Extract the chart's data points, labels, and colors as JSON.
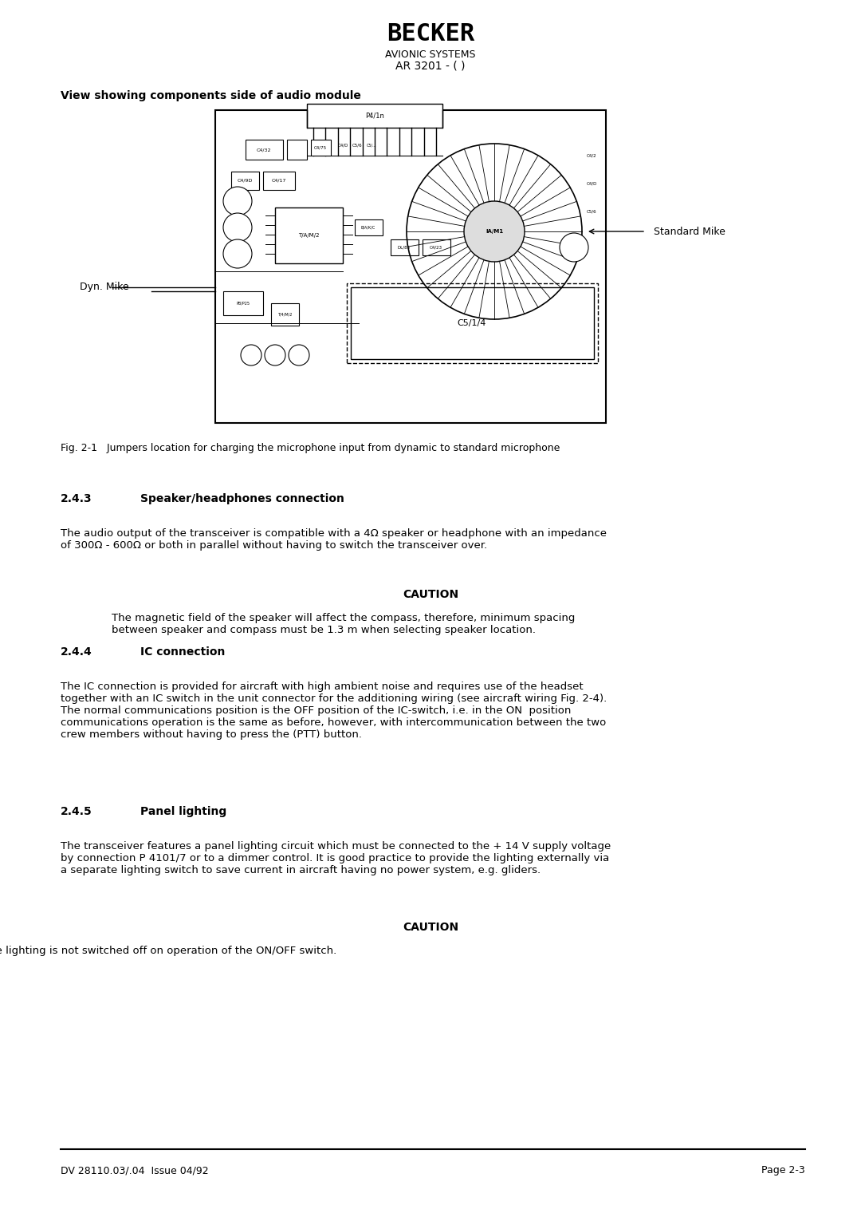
{
  "bg_color": "#ffffff",
  "page_width": 10.8,
  "page_height": 15.25,
  "header": {
    "becker_text": "BECKER",
    "avionic_text": "AVIONIC SYSTEMS",
    "model_text": "AR 3201 - ( )"
  },
  "section_title": "View showing components side of audio module",
  "fig_caption": "Fig. 2-1   Jumpers location for charging the microphone input from dynamic to standard microphone",
  "labels": {
    "dyn_mike": "Dyn. Mike",
    "std_mike": "Standard Mike"
  },
  "section_243": {
    "number": "2.4.3",
    "title": "Speaker/headphones connection",
    "body": "The audio output of the transceiver is compatible with a 4Ω speaker or headphone with an impedance\nof 300Ω - 600Ω or both in parallel without having to switch the transceiver over.",
    "caution_title": "CAUTION",
    "caution_body": "The magnetic field of the speaker will affect the compass, therefore, minimum spacing\nbetween speaker and compass must be 1.3 m when selecting speaker location."
  },
  "section_244": {
    "number": "2.4.4",
    "title": "IC connection",
    "body": "The IC connection is provided for aircraft with high ambient noise and requires use of the headset\ntogether with an IC switch in the unit connector for the additioning wiring (see aircraft wiring Fig. 2-4).\nThe normal communications position is the OFF position of the IC-switch, i.e. in the ON  position\ncommunications operation is the same as before, however, with intercommunication between the two\ncrew members without having to press the (PTT) button."
  },
  "section_245": {
    "number": "2.4.5",
    "title": "Panel lighting",
    "body": "The transceiver features a panel lighting circuit which must be connected to the + 14 V supply voltage\nby connection P 4101/7 or to a dimmer control. It is good practice to provide the lighting externally via\na separate lighting switch to save current in aircraft having no power system, e.g. gliders.",
    "caution_title": "CAUTION",
    "caution_body": "The lighting is not switched off on operation of the ON/OFF switch."
  },
  "footer": {
    "left": "DV 28110.03/.04  Issue 04/92",
    "right": "Page 2-3"
  }
}
